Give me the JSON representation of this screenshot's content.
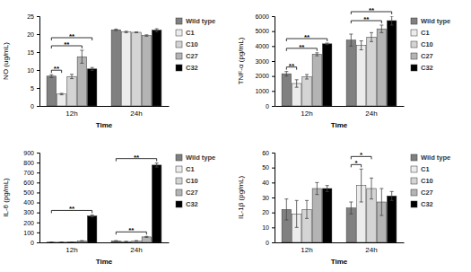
{
  "chart_data": [
    {
      "type": "bar",
      "y_label": "NO (ug/mL)",
      "x_label": "Time",
      "categories": [
        "12h",
        "24h"
      ],
      "series": [
        {
          "name": "Wild type",
          "color": "#808080",
          "values": [
            8.3,
            21.2
          ],
          "errors": [
            0.4,
            0.2
          ]
        },
        {
          "name": "C1",
          "color": "#ececec",
          "values": [
            3.3,
            20.6
          ],
          "errors": [
            0.2,
            0.2
          ]
        },
        {
          "name": "C10",
          "color": "#d4d4d4",
          "values": [
            8.2,
            20.5
          ],
          "errors": [
            0.6,
            0.1
          ]
        },
        {
          "name": "C27",
          "color": "#b4b4b4",
          "values": [
            13.7,
            19.6
          ],
          "errors": [
            1.8,
            0.2
          ]
        },
        {
          "name": "C32",
          "color": "#000000",
          "values": [
            10.3,
            21.1
          ],
          "errors": [
            0.4,
            0.4
          ]
        }
      ],
      "ylim": [
        0,
        25
      ],
      "yticks": [
        0,
        5,
        10,
        15,
        20,
        25
      ],
      "grid": false,
      "legend": "right",
      "annotations": [
        {
          "category": "12h",
          "from": "Wild type",
          "to": "C1",
          "text": "**"
        },
        {
          "category": "12h",
          "from": "Wild type",
          "to": "C27",
          "text": "**"
        },
        {
          "category": "12h",
          "from": "Wild type",
          "to": "C32",
          "text": "**"
        }
      ]
    },
    {
      "type": "bar",
      "y_label": "TNF-α (pg/mL)",
      "x_label": "Time",
      "categories": [
        "12h",
        "24h"
      ],
      "series": [
        {
          "name": "Wild type",
          "color": "#808080",
          "values": [
            2150,
            4400
          ],
          "errors": [
            150,
            400
          ]
        },
        {
          "name": "C1",
          "color": "#ececec",
          "values": [
            1500,
            4050
          ],
          "errors": [
            250,
            300
          ]
        },
        {
          "name": "C10",
          "color": "#d4d4d4",
          "values": [
            1950,
            4600
          ],
          "errors": [
            150,
            300
          ]
        },
        {
          "name": "C27",
          "color": "#b4b4b4",
          "values": [
            3450,
            5150
          ],
          "errors": [
            100,
            250
          ]
        },
        {
          "name": "C32",
          "color": "#000000",
          "values": [
            4150,
            5700
          ],
          "errors": [
            50,
            300
          ]
        }
      ],
      "ylim": [
        0,
        6000
      ],
      "yticks": [
        0,
        1000,
        2000,
        3000,
        4000,
        5000,
        6000
      ],
      "grid": false,
      "legend": "right",
      "annotations": [
        {
          "category": "12h",
          "from": "Wild type",
          "to": "C1",
          "text": "**"
        },
        {
          "category": "12h",
          "from": "Wild type",
          "to": "C27",
          "text": "**"
        },
        {
          "category": "12h",
          "from": "Wild type",
          "to": "C32",
          "text": "**"
        },
        {
          "category": "24h",
          "from": "Wild type",
          "to": "C27",
          "text": "**"
        },
        {
          "category": "24h",
          "from": "Wild type",
          "to": "C32",
          "text": "**"
        }
      ]
    },
    {
      "type": "bar",
      "y_label": "IL-6 (pg/mL)",
      "x_label": "Time",
      "categories": [
        "12h",
        "24h"
      ],
      "series": [
        {
          "name": "Wild type",
          "color": "#808080",
          "values": [
            2,
            15
          ],
          "errors": [
            1,
            3
          ]
        },
        {
          "name": "C1",
          "color": "#ececec",
          "values": [
            2,
            8
          ],
          "errors": [
            1,
            2
          ]
        },
        {
          "name": "C10",
          "color": "#d4d4d4",
          "values": [
            3,
            15
          ],
          "errors": [
            1,
            3
          ]
        },
        {
          "name": "C27",
          "color": "#b4b4b4",
          "values": [
            15,
            55
          ],
          "errors": [
            3,
            5
          ]
        },
        {
          "name": "C32",
          "color": "#000000",
          "values": [
            265,
            775
          ],
          "errors": [
            10,
            20
          ]
        }
      ],
      "ylim": [
        0,
        900
      ],
      "yticks": [
        0,
        100,
        200,
        300,
        400,
        500,
        600,
        700,
        800,
        900
      ],
      "grid": false,
      "legend": "right",
      "annotations": [
        {
          "category": "12h",
          "from": "Wild type",
          "to": "C32",
          "text": "**"
        },
        {
          "category": "24h",
          "from": "Wild type",
          "to": "C27",
          "text": "**"
        },
        {
          "category": "24h",
          "from": "Wild type",
          "to": "C32",
          "text": "**"
        }
      ]
    },
    {
      "type": "bar",
      "y_label": "IL-1β (pg/mL)",
      "x_label": "Time",
      "categories": [
        "12h",
        "24h"
      ],
      "series": [
        {
          "name": "Wild type",
          "color": "#808080",
          "values": [
            22,
            23
          ],
          "errors": [
            7,
            4
          ]
        },
        {
          "name": "C1",
          "color": "#ececec",
          "values": [
            19,
            38
          ],
          "errors": [
            9,
            11
          ]
        },
        {
          "name": "C10",
          "color": "#d4d4d4",
          "values": [
            22,
            36
          ],
          "errors": [
            6,
            7
          ]
        },
        {
          "name": "C27",
          "color": "#b4b4b4",
          "values": [
            36,
            27
          ],
          "errors": [
            4,
            9
          ]
        },
        {
          "name": "C32",
          "color": "#000000",
          "values": [
            36,
            31
          ],
          "errors": [
            2,
            3
          ]
        }
      ],
      "ylim": [
        0,
        60
      ],
      "yticks": [
        0,
        10,
        20,
        30,
        40,
        50,
        60
      ],
      "grid": false,
      "legend": "right",
      "annotations": [
        {
          "category": "24h",
          "from": "Wild type",
          "to": "C1",
          "text": "*"
        },
        {
          "category": "24h",
          "from": "Wild type",
          "to": "C10",
          "text": "*"
        }
      ]
    }
  ]
}
